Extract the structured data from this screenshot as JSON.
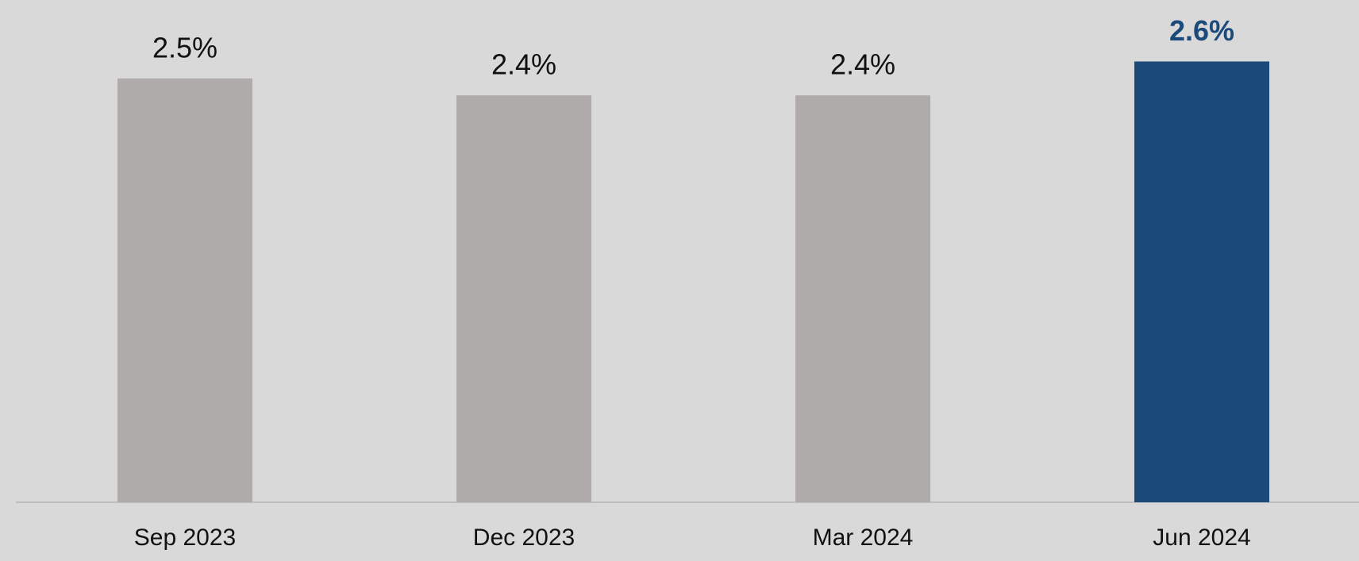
{
  "chart_data": {
    "type": "bar",
    "categories": [
      "Sep 2023",
      "Dec 2023",
      "Mar 2024",
      "Jun 2024"
    ],
    "values": [
      2.5,
      2.4,
      2.4,
      2.6
    ],
    "value_labels": [
      "2.5%",
      "2.4%",
      "2.4%",
      "2.6%"
    ],
    "colors": [
      "#afabaa",
      "#afabaa",
      "#afabaa",
      "#1b4a7a"
    ],
    "value_label_colors": [
      "#111111",
      "#111111",
      "#111111",
      "#1b4a7a"
    ],
    "ylim": [
      0,
      3
    ]
  }
}
